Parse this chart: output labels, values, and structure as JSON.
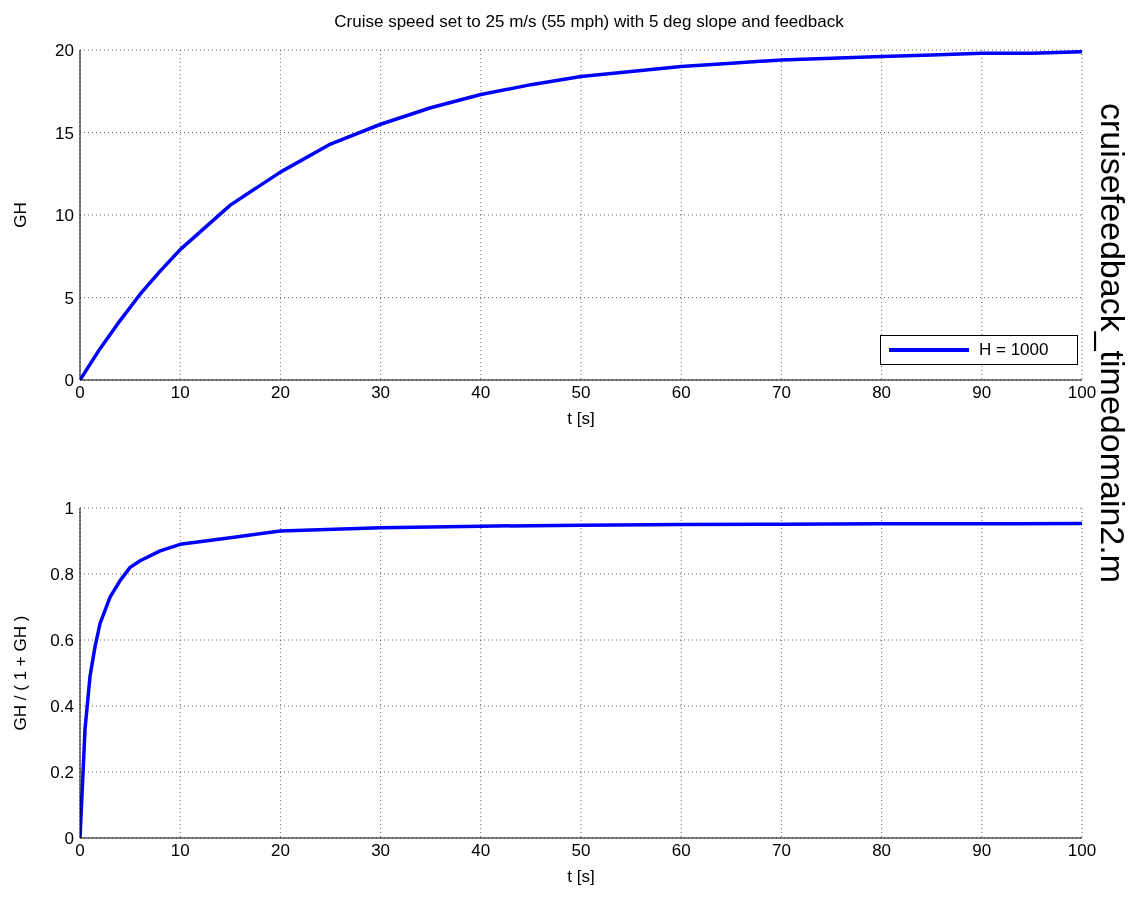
{
  "chart_data": [
    {
      "type": "line",
      "title": "Cruise speed set to 25 m/s (55 mph) with 5 deg slope and feedback",
      "xlabel": "t [s]",
      "ylabel": "GH",
      "xlim": [
        0,
        100
      ],
      "xticks": [
        0,
        10,
        20,
        30,
        40,
        50,
        60,
        70,
        80,
        90,
        100
      ],
      "ylim": [
        0,
        20
      ],
      "yticks": [
        0,
        5,
        10,
        15,
        20
      ],
      "grid": true,
      "legend": "bottom right",
      "marker": "none",
      "line_style": "solid",
      "annotations": [
        "cruisefeedback_timedomain2.m"
      ],
      "x": [
        0,
        2,
        4,
        6,
        8,
        10,
        15,
        20,
        25,
        30,
        35,
        40,
        45,
        50,
        55,
        60,
        65,
        70,
        75,
        80,
        85,
        90,
        95,
        100
      ],
      "series": [
        {
          "name": "H = 1000",
          "color": "#0000ff",
          "values": [
            0,
            1.9,
            3.6,
            5.2,
            6.6,
            7.9,
            10.6,
            12.6,
            14.3,
            15.5,
            16.5,
            17.3,
            17.9,
            18.4,
            18.7,
            19.0,
            19.2,
            19.4,
            19.5,
            19.6,
            19.7,
            19.8,
            19.8,
            19.9
          ]
        }
      ]
    },
    {
      "type": "line",
      "xlabel": "t [s]",
      "ylabel": "GH / ( 1 + GH )",
      "xlim": [
        0,
        100
      ],
      "xticks": [
        0,
        10,
        20,
        30,
        40,
        50,
        60,
        70,
        80,
        90,
        100
      ],
      "ylim": [
        0,
        1
      ],
      "yticks": [
        0,
        0.2,
        0.4,
        0.6,
        0.8,
        1
      ],
      "grid": true,
      "marker": "none",
      "line_style": "solid",
      "x": [
        0,
        0.5,
        1,
        1.5,
        2,
        3,
        4,
        5,
        6,
        8,
        10,
        15,
        20,
        30,
        40,
        50,
        60,
        70,
        80,
        90,
        100
      ],
      "series": [
        {
          "color": "#0000ff",
          "values": [
            0,
            0.33,
            0.49,
            0.58,
            0.65,
            0.73,
            0.78,
            0.82,
            0.84,
            0.87,
            0.89,
            0.91,
            0.93,
            0.94,
            0.945,
            0.948,
            0.95,
            0.951,
            0.952,
            0.952,
            0.953
          ]
        }
      ]
    }
  ]
}
